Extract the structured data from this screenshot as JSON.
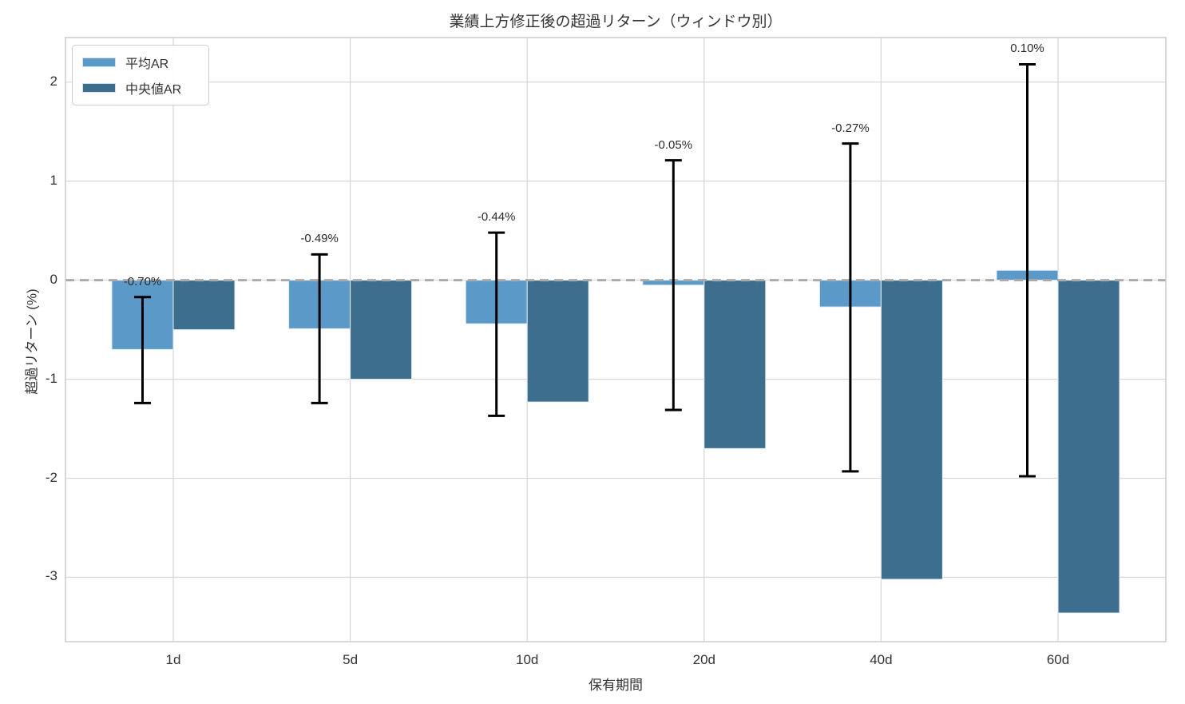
{
  "chart_data": {
    "type": "bar",
    "title": "業績上方修正後の超過リターン（ウィンドウ別）",
    "xlabel": "保有期間",
    "ylabel": "超過リターン (%)",
    "categories": [
      "1d",
      "5d",
      "10d",
      "20d",
      "40d",
      "60d"
    ],
    "series": [
      {
        "name": "平均AR",
        "color": "#5b9ac8",
        "values": [
          -0.7,
          -0.49,
          -0.44,
          -0.05,
          -0.27,
          0.1
        ],
        "error_high": [
          -0.17,
          0.26,
          0.48,
          1.21,
          1.38,
          2.18
        ],
        "error_low": [
          -1.24,
          -1.24,
          -1.37,
          -1.31,
          -1.93,
          -1.98
        ],
        "labels": [
          "-0.70%",
          "-0.49%",
          "-0.44%",
          "-0.05%",
          "-0.27%",
          "0.10%"
        ]
      },
      {
        "name": "中央値AR",
        "color": "#3e6e8d",
        "values": [
          -0.5,
          -1.0,
          -1.23,
          -1.7,
          -3.02,
          -3.36
        ]
      }
    ],
    "yticks": [
      2,
      1,
      0,
      -1,
      -2,
      -3
    ],
    "ylim": [
      -3.65,
      2.45
    ],
    "grid": true,
    "legend_position": "upper left",
    "colors": {
      "grid": "#d9d9d9",
      "spine": "#cccccc",
      "zero_line": "#aaaaaa",
      "error_bar": "#000000",
      "text": "#333333"
    }
  }
}
